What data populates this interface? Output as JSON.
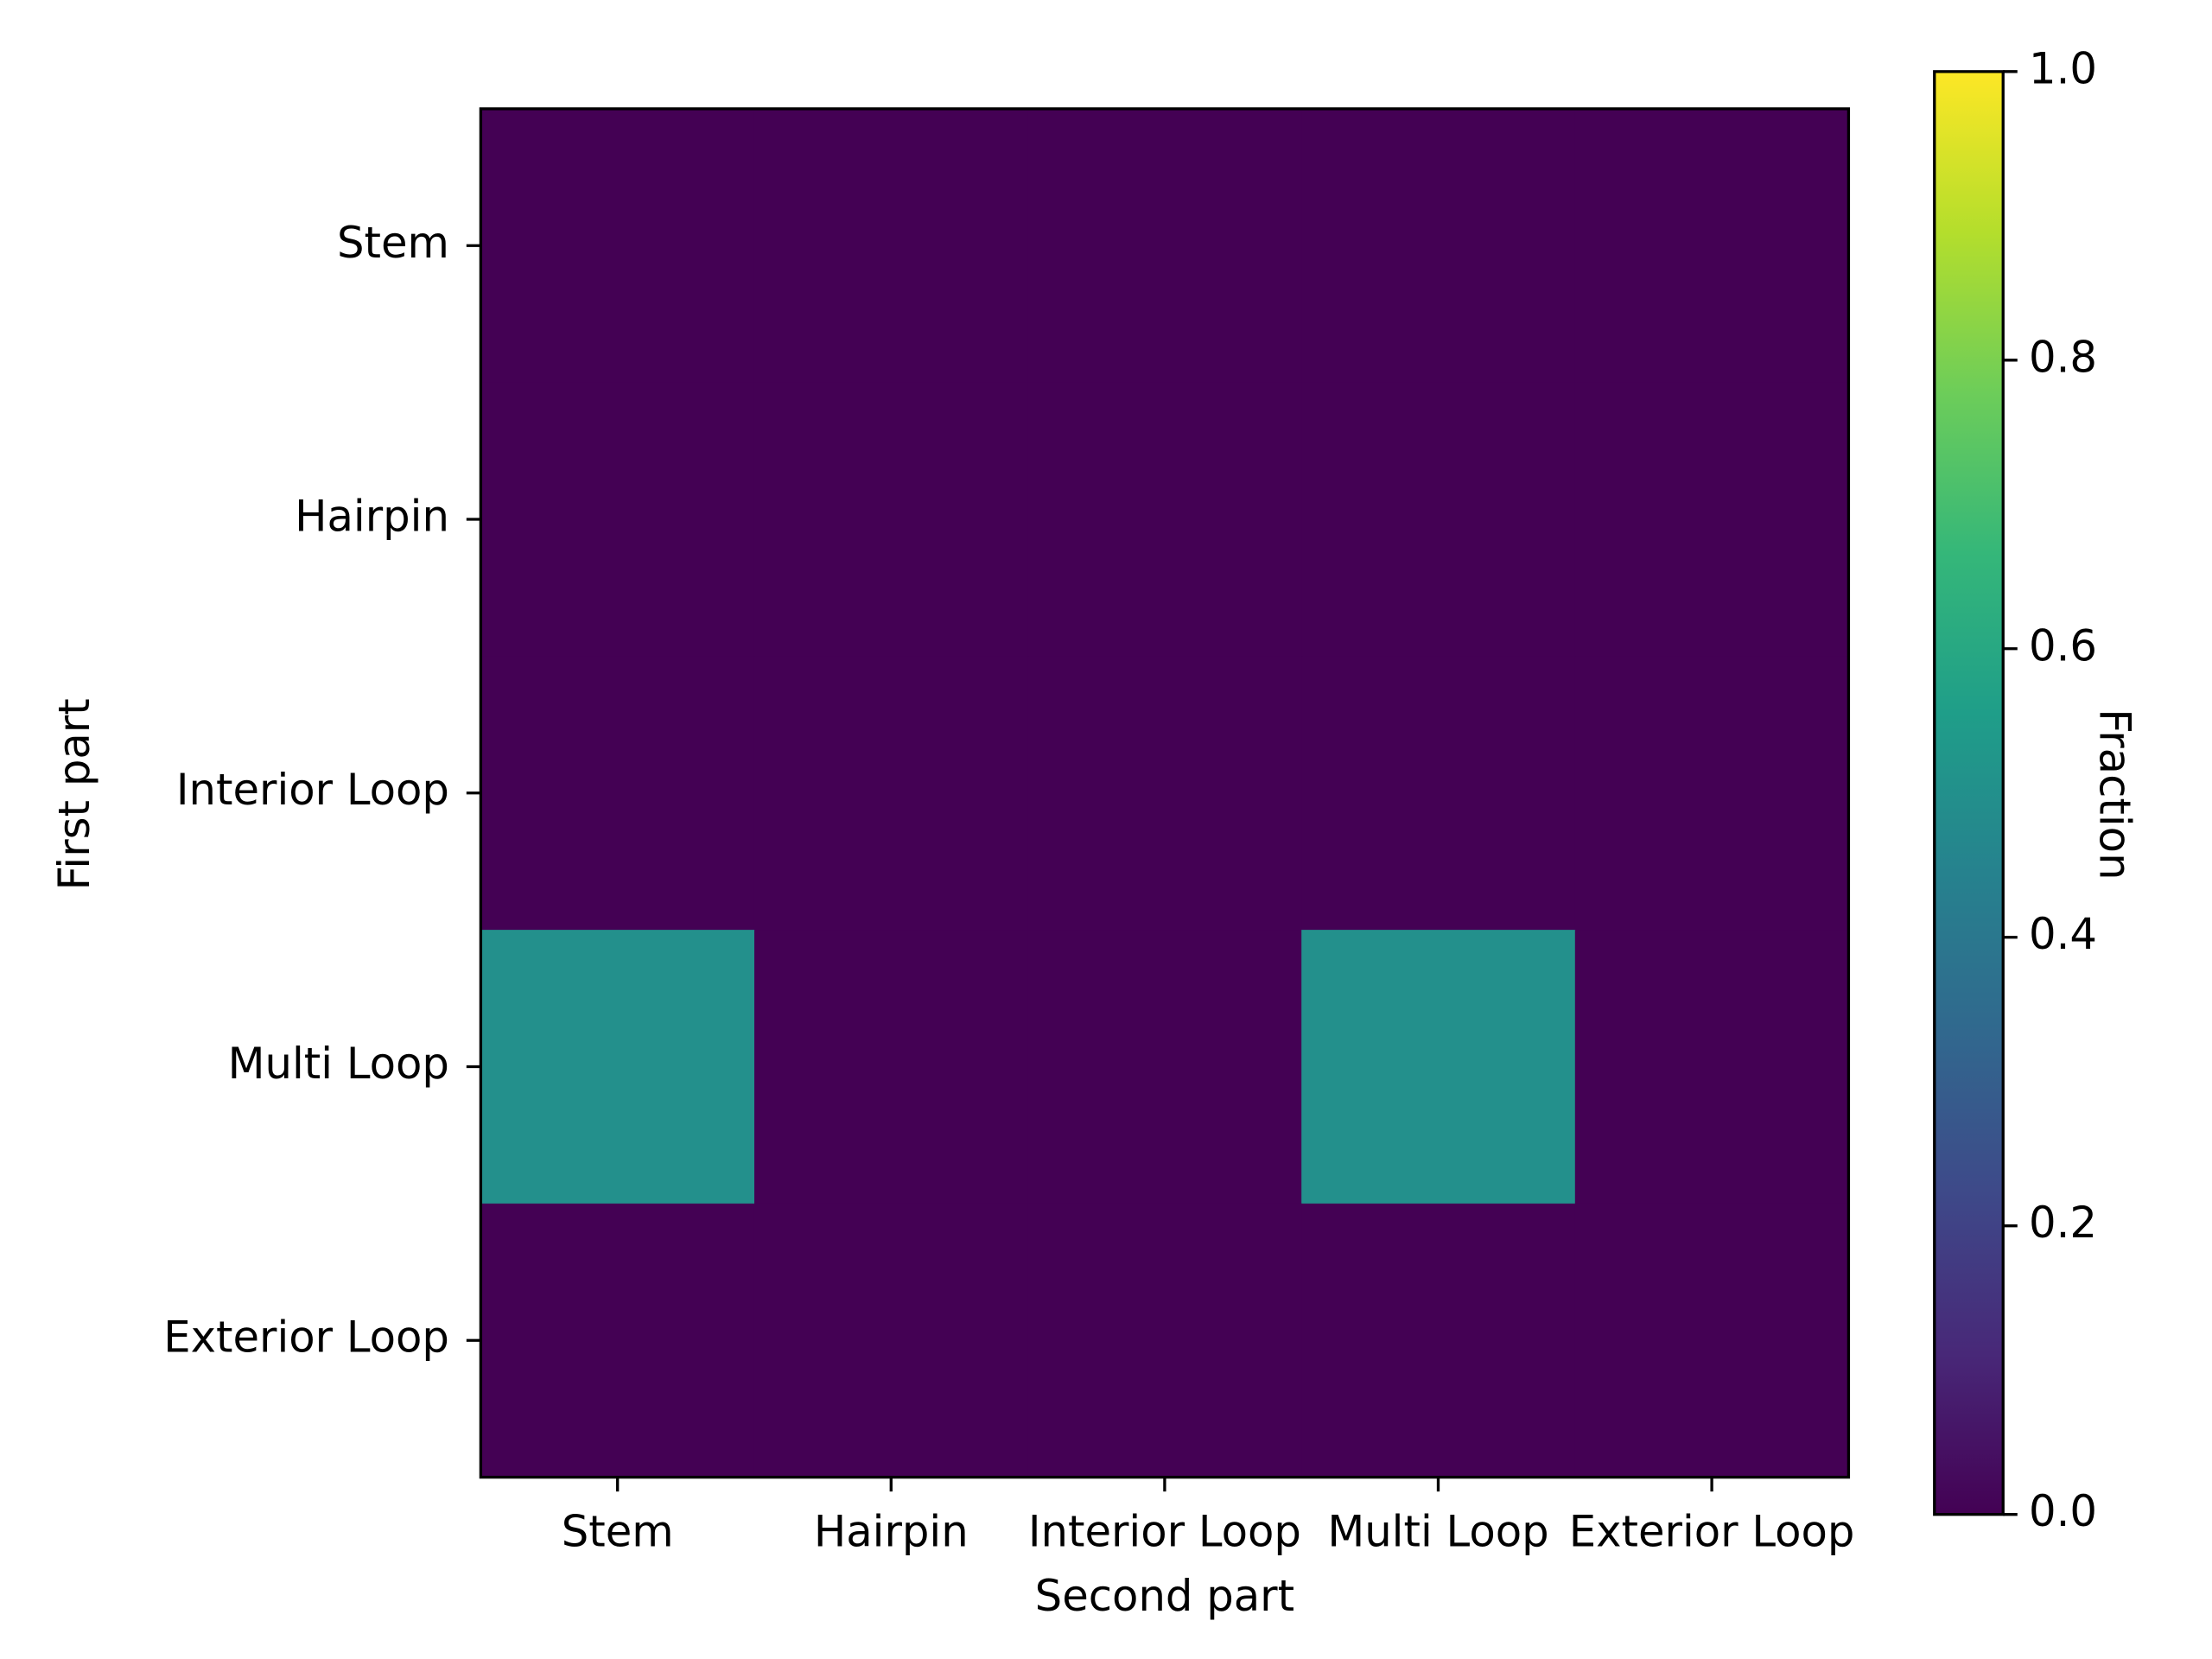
{
  "chart_data": {
    "type": "heatmap",
    "x_categories": [
      "Stem",
      "Hairpin",
      "Interior Loop",
      "Multi Loop",
      "Exterior Loop"
    ],
    "y_categories": [
      "Stem",
      "Hairpin",
      "Interior Loop",
      "Multi Loop",
      "Exterior Loop"
    ],
    "values": [
      [
        0,
        0,
        0,
        0,
        0
      ],
      [
        0,
        0,
        0,
        0,
        0
      ],
      [
        0,
        0,
        0,
        0,
        0
      ],
      [
        0.5,
        0,
        0,
        0.5,
        0
      ],
      [
        0,
        0,
        0,
        0,
        0
      ]
    ],
    "xlabel": "Second part",
    "ylabel": "First part",
    "colorbar_label": "Fraction",
    "colormap": "viridis",
    "clim": [
      0,
      1
    ],
    "cticks": [
      {
        "value": 0,
        "label": "0.0"
      },
      0.2,
      0.4,
      0.6,
      0.8,
      {
        "value": 1,
        "label": "1.0"
      }
    ]
  }
}
